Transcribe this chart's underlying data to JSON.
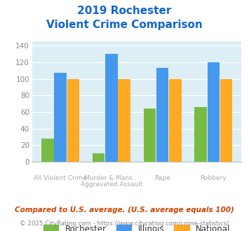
{
  "title_line1": "2019 Rochester",
  "title_line2": "Violent Crime Comparison",
  "top_labels": [
    "",
    "Murder & Mans...",
    "",
    ""
  ],
  "bottom_labels": [
    "All Violent Crime",
    "Aggravated Assault",
    "Rape",
    "Robbery"
  ],
  "rochester": [
    28,
    10,
    64,
    66
  ],
  "illinois": [
    107,
    130,
    113,
    120
  ],
  "national": [
    100,
    100,
    100,
    100
  ],
  "rochester_color": "#77bb44",
  "illinois_color": "#4499ee",
  "national_color": "#ffaa22",
  "bg_color": "#ddeef5",
  "ylim": [
    0,
    145
  ],
  "yticks": [
    0,
    20,
    40,
    60,
    80,
    100,
    120,
    140
  ],
  "footnote1": "Compared to U.S. average. (U.S. average equals 100)",
  "footnote2": "© 2025 CityRating.com - https://www.cityrating.com/crime-statistics/",
  "footnote1_color": "#cc4400",
  "footnote2_color": "#888888",
  "title_color": "#1166cc",
  "legend_labels": [
    "Rochester",
    "Illinois",
    "National"
  ]
}
